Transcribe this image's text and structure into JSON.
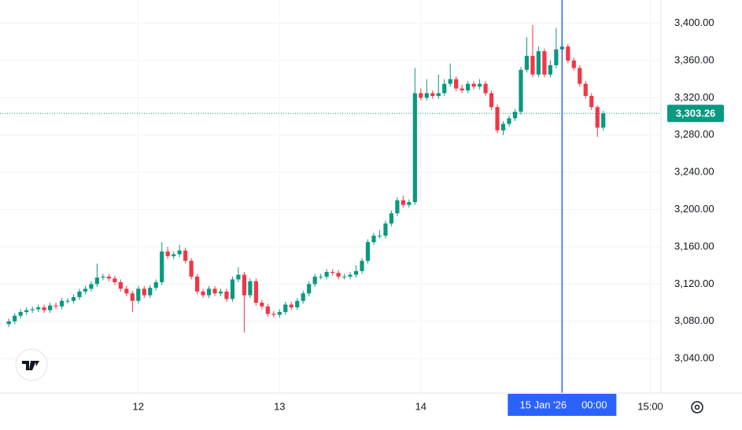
{
  "chart_data": {
    "type": "candlestick",
    "up_color": "#089981",
    "down_color": "#f23645",
    "grid": true,
    "x": [
      2,
      3,
      4,
      5,
      6,
      7,
      8,
      9,
      10,
      11,
      12,
      13,
      14,
      15,
      16,
      17,
      18,
      19,
      20,
      21,
      22,
      23,
      24,
      25,
      26,
      27,
      28,
      29,
      30,
      31,
      32,
      33,
      34,
      35,
      36,
      37,
      38,
      39,
      40,
      41,
      42,
      43,
      44,
      45,
      46,
      47,
      48,
      49,
      50,
      51,
      52,
      53,
      54,
      55,
      56,
      57,
      58,
      59,
      60,
      61,
      62,
      63,
      64,
      65,
      66,
      67,
      68,
      69,
      70,
      71,
      72,
      73,
      74,
      75,
      76,
      77,
      78,
      79,
      80,
      81,
      82,
      83,
      84,
      85,
      86,
      87,
      88,
      89,
      90,
      91,
      92,
      93,
      94,
      95,
      96,
      97,
      98,
      99,
      100,
      101,
      102,
      103
    ],
    "open": [
      3077,
      3080,
      3086,
      3090,
      3092,
      3093,
      3095,
      3092,
      3097,
      3096,
      3102,
      3102,
      3106,
      3112,
      3115,
      3120,
      3127,
      3128,
      3126,
      3122,
      3115,
      3110,
      3102,
      3115,
      3108,
      3116,
      3122,
      3155,
      3150,
      3152,
      3156,
      3145,
      3128,
      3112,
      3108,
      3115,
      3110,
      3112,
      3104,
      3125,
      3130,
      3108,
      3123,
      3100,
      3096,
      3088,
      3087,
      3090,
      3098,
      3095,
      3102,
      3110,
      3120,
      3128,
      3128,
      3133,
      3132,
      3128,
      3128,
      3130,
      3134,
      3145,
      3165,
      3172,
      3172,
      3185,
      3196,
      3210,
      3205,
      3208,
      3325,
      3320,
      3325,
      3322,
      3325,
      3335,
      3340,
      3330,
      3328,
      3335,
      3332,
      3335,
      3325,
      3310,
      3285,
      3292,
      3298,
      3305,
      3350,
      3365,
      3345,
      3370,
      3345,
      3355,
      3372,
      3375,
      3360,
      3352,
      3335,
      3322,
      3310,
      3288
    ],
    "high": [
      3083,
      3089,
      3093,
      3095,
      3096,
      3098,
      3098,
      3100,
      3100,
      3105,
      3105,
      3109,
      3115,
      3118,
      3123,
      3142,
      3131,
      3131,
      3129,
      3125,
      3118,
      3113,
      3118,
      3118,
      3119,
      3125,
      3165,
      3160,
      3155,
      3162,
      3159,
      3148,
      3131,
      3115,
      3118,
      3118,
      3115,
      3115,
      3128,
      3138,
      3133,
      3126,
      3126,
      3103,
      3099,
      3091,
      3093,
      3101,
      3101,
      3105,
      3113,
      3123,
      3131,
      3131,
      3136,
      3136,
      3135,
      3131,
      3133,
      3140,
      3148,
      3168,
      3175,
      3178,
      3188,
      3199,
      3213,
      3215,
      3211,
      3352,
      3330,
      3340,
      3328,
      3345,
      3340,
      3357,
      3343,
      3334,
      3338,
      3338,
      3340,
      3338,
      3328,
      3313,
      3295,
      3301,
      3308,
      3353,
      3385,
      3398,
      3375,
      3373,
      3360,
      3395,
      3390,
      3378,
      3363,
      3355,
      3338,
      3325,
      3312,
      3306
    ],
    "low": [
      3074,
      3077,
      3083,
      3087,
      3089,
      3090,
      3089,
      3089,
      3093,
      3093,
      3099,
      3099,
      3103,
      3109,
      3112,
      3117,
      3124,
      3123,
      3119,
      3112,
      3107,
      3090,
      3099,
      3105,
      3105,
      3113,
      3119,
      3147,
      3147,
      3149,
      3142,
      3125,
      3109,
      3105,
      3105,
      3107,
      3107,
      3101,
      3101,
      3122,
      3068,
      3105,
      3097,
      3093,
      3085,
      3084,
      3084,
      3087,
      3092,
      3092,
      3099,
      3107,
      3117,
      3125,
      3125,
      3129,
      3125,
      3125,
      3125,
      3127,
      3131,
      3142,
      3162,
      3169,
      3169,
      3182,
      3193,
      3202,
      3202,
      3205,
      3317,
      3317,
      3319,
      3319,
      3322,
      3332,
      3327,
      3325,
      3325,
      3329,
      3329,
      3322,
      3307,
      3282,
      3280,
      3289,
      3295,
      3302,
      3347,
      3342,
      3342,
      3342,
      3342,
      3352,
      3369,
      3357,
      3349,
      3332,
      3319,
      3307,
      3278,
      3285
    ],
    "close": [
      3080,
      3086,
      3090,
      3092,
      3093,
      3095,
      3092,
      3097,
      3096,
      3102,
      3102,
      3106,
      3112,
      3115,
      3120,
      3127,
      3128,
      3126,
      3122,
      3115,
      3110,
      3102,
      3115,
      3108,
      3116,
      3122,
      3155,
      3150,
      3152,
      3156,
      3145,
      3128,
      3112,
      3108,
      3115,
      3110,
      3112,
      3104,
      3125,
      3130,
      3108,
      3123,
      3100,
      3096,
      3088,
      3087,
      3090,
      3098,
      3095,
      3102,
      3110,
      3120,
      3128,
      3128,
      3133,
      3132,
      3128,
      3128,
      3130,
      3134,
      3145,
      3165,
      3172,
      3172,
      3185,
      3196,
      3210,
      3205,
      3208,
      3325,
      3320,
      3325,
      3322,
      3325,
      3335,
      3340,
      3330,
      3328,
      3335,
      3332,
      3335,
      3325,
      3310,
      3285,
      3292,
      3298,
      3305,
      3350,
      3365,
      3345,
      3370,
      3345,
      3355,
      3372,
      3375,
      3360,
      3352,
      3335,
      3322,
      3310,
      3288,
      3303.26
    ],
    "xlim": [
      0.5,
      112.8
    ],
    "xticks": [
      {
        "value": 24,
        "label": "12"
      },
      {
        "value": 48,
        "label": "13"
      },
      {
        "value": 72,
        "label": "14"
      },
      {
        "value": 111,
        "label": "15:00"
      }
    ],
    "ylim": [
      3003,
      3425
    ],
    "yticks": [
      {
        "value": 3040,
        "label": "3,040.00"
      },
      {
        "value": 3080,
        "label": "3,080.00"
      },
      {
        "value": 3120,
        "label": "3,120.00"
      },
      {
        "value": 3160,
        "label": "3,160.00"
      },
      {
        "value": 3200,
        "label": "3,200.00"
      },
      {
        "value": 3240,
        "label": "3,240.00"
      },
      {
        "value": 3280,
        "label": "3,280.00"
      },
      {
        "value": 3320,
        "label": "3,320.00"
      },
      {
        "value": 3360,
        "label": "3,360.00"
      },
      {
        "value": 3400,
        "label": "3,400.00"
      }
    ],
    "last_price": {
      "value": 3303.26,
      "label": "3,303.26"
    },
    "crosshair": {
      "x": 96,
      "date_label": "15 Jan '26",
      "time_label": "00:00",
      "color": "#2962ff"
    }
  }
}
